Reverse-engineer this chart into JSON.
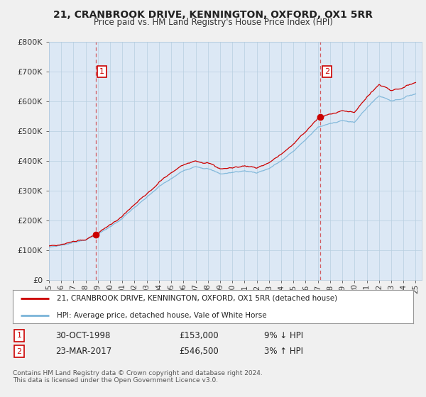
{
  "title1": "21, CRANBROOK DRIVE, KENNINGTON, OXFORD, OX1 5RR",
  "title2": "Price paid vs. HM Land Registry's House Price Index (HPI)",
  "legend_line1": "21, CRANBROOK DRIVE, KENNINGTON, OXFORD, OX1 5RR (detached house)",
  "legend_line2": "HPI: Average price, detached house, Vale of White Horse",
  "annotation1_date": "30-OCT-1998",
  "annotation1_price": "£153,000",
  "annotation1_hpi": "9% ↓ HPI",
  "annotation2_date": "23-MAR-2017",
  "annotation2_price": "£546,500",
  "annotation2_hpi": "3% ↑ HPI",
  "footer": "Contains HM Land Registry data © Crown copyright and database right 2024.\nThis data is licensed under the Open Government Licence v3.0.",
  "sale1_year": 1998.83,
  "sale1_value": 153000,
  "sale2_year": 2017.22,
  "sale2_value": 546500,
  "hpi_color": "#7ab4d8",
  "price_color": "#cc0000",
  "background_color": "#f0f0f0",
  "plot_bg_color": "#dce8f5",
  "shaded_bg_color": "#dce8f5",
  "ylim": [
    0,
    800000
  ],
  "xlim_start": 1995,
  "xlim_end": 2025
}
